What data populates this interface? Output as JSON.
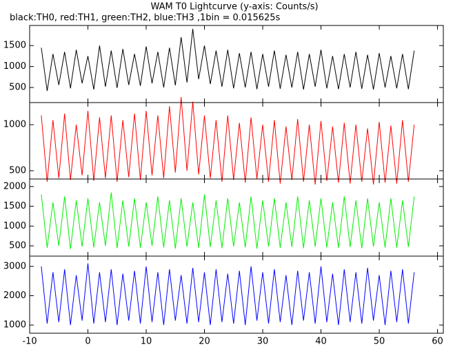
{
  "chart_data": {
    "type": "line",
    "title": "WAM T0 Lightcurve (y-axis: Counts/s)",
    "subtitle": "black:TH0, red:TH1, green:TH2, blue:TH3 ,1bin = 0.015625s",
    "x": [
      -8,
      -7,
      -6,
      -5,
      -4,
      -3,
      -2,
      -1,
      0,
      1,
      2,
      3,
      4,
      5,
      6,
      7,
      8,
      9,
      10,
      11,
      12,
      13,
      14,
      15,
      16,
      17,
      18,
      19,
      20,
      21,
      22,
      23,
      24,
      25,
      26,
      27,
      28,
      29,
      30,
      31,
      32,
      33,
      34,
      35,
      36,
      37,
      38,
      39,
      40,
      41,
      42,
      43,
      44,
      45,
      46,
      47,
      48,
      49,
      50,
      51,
      52,
      53,
      54,
      55,
      56
    ],
    "xlim": [
      -10,
      61
    ],
    "xticks": [
      -10,
      0,
      10,
      20,
      30,
      40,
      50,
      60
    ],
    "panels": [
      {
        "color": "#000000",
        "ylim": [
          140,
          1980
        ],
        "yticks": [
          500,
          1000,
          1500
        ],
        "values": [
          1450,
          420,
          1300,
          560,
          1350,
          480,
          1400,
          600,
          1250,
          450,
          1500,
          520,
          1380,
          490,
          1420,
          560,
          1300,
          540,
          1480,
          600,
          1350,
          500,
          1450,
          550,
          1700,
          620,
          1900,
          700,
          1500,
          580,
          1380,
          520,
          1400,
          480,
          1320,
          500,
          1350,
          460,
          1300,
          520,
          1380,
          470,
          1280,
          500,
          1350,
          450,
          1300,
          520,
          1400,
          480,
          1250,
          460,
          1300,
          500,
          1350,
          470,
          1280,
          450,
          1320,
          500,
          1250,
          480,
          1300,
          460,
          1380
        ]
      },
      {
        "color": "#ff0000",
        "ylim": [
          410,
          1240
        ],
        "yticks": [
          500,
          1000
        ],
        "values": [
          1100,
          380,
          1050,
          420,
          1120,
          400,
          1000,
          450,
          1150,
          390,
          1080,
          420,
          1100,
          380,
          1050,
          430,
          1120,
          400,
          1150,
          450,
          1100,
          420,
          1200,
          480,
          1300,
          500,
          1250,
          460,
          1100,
          420,
          1050,
          380,
          1100,
          400,
          1020,
          370,
          1080,
          410,
          1000,
          380,
          1050,
          360,
          980,
          400,
          1060,
          380,
          1000,
          350,
          1040,
          390,
          980,
          370,
          1020,
          360,
          1000,
          380,
          960,
          350,
          1030,
          370,
          990,
          360,
          1050,
          380,
          1000
        ]
      },
      {
        "color": "#00ee00",
        "ylim": [
          240,
          2190
        ],
        "yticks": [
          500,
          1000,
          1500,
          2000
        ],
        "values": [
          1800,
          450,
          1600,
          500,
          1750,
          420,
          1650,
          480,
          1700,
          460,
          1600,
          500,
          1850,
          440,
          1650,
          480,
          1700,
          450,
          1600,
          500,
          1750,
          460,
          1650,
          430,
          1700,
          480,
          1600,
          450,
          1800,
          470,
          1650,
          440,
          1700,
          480,
          1600,
          460,
          1750,
          430,
          1650,
          480,
          1700,
          450,
          1600,
          470,
          1750,
          440,
          1650,
          480,
          1700,
          460,
          1600,
          450,
          1750,
          470,
          1650,
          440,
          1700,
          480,
          1600,
          460,
          1700,
          450,
          1650,
          470,
          1750
        ]
      },
      {
        "color": "#0000ff",
        "ylim": [
          720,
          3350
        ],
        "yticks": [
          1000,
          2000,
          3000
        ],
        "values": [
          3000,
          1050,
          2800,
          1100,
          2900,
          1000,
          2700,
          1150,
          3100,
          1050,
          2800,
          1100,
          2900,
          1000,
          2750,
          1150,
          2850,
          1050,
          3000,
          1100,
          2800,
          1000,
          2900,
          1150,
          2700,
          1050,
          2950,
          1100,
          2800,
          1000,
          2900,
          1100,
          2750,
          1050,
          2850,
          1000,
          3000,
          1150,
          2800,
          1050,
          2900,
          1100,
          2700,
          1000,
          2850,
          1150,
          2800,
          1050,
          3000,
          1100,
          2750,
          1000,
          2900,
          1100,
          2800,
          1050,
          2950,
          1150,
          2700,
          1000,
          2850,
          1100,
          2900,
          1050,
          2800
        ]
      }
    ]
  }
}
